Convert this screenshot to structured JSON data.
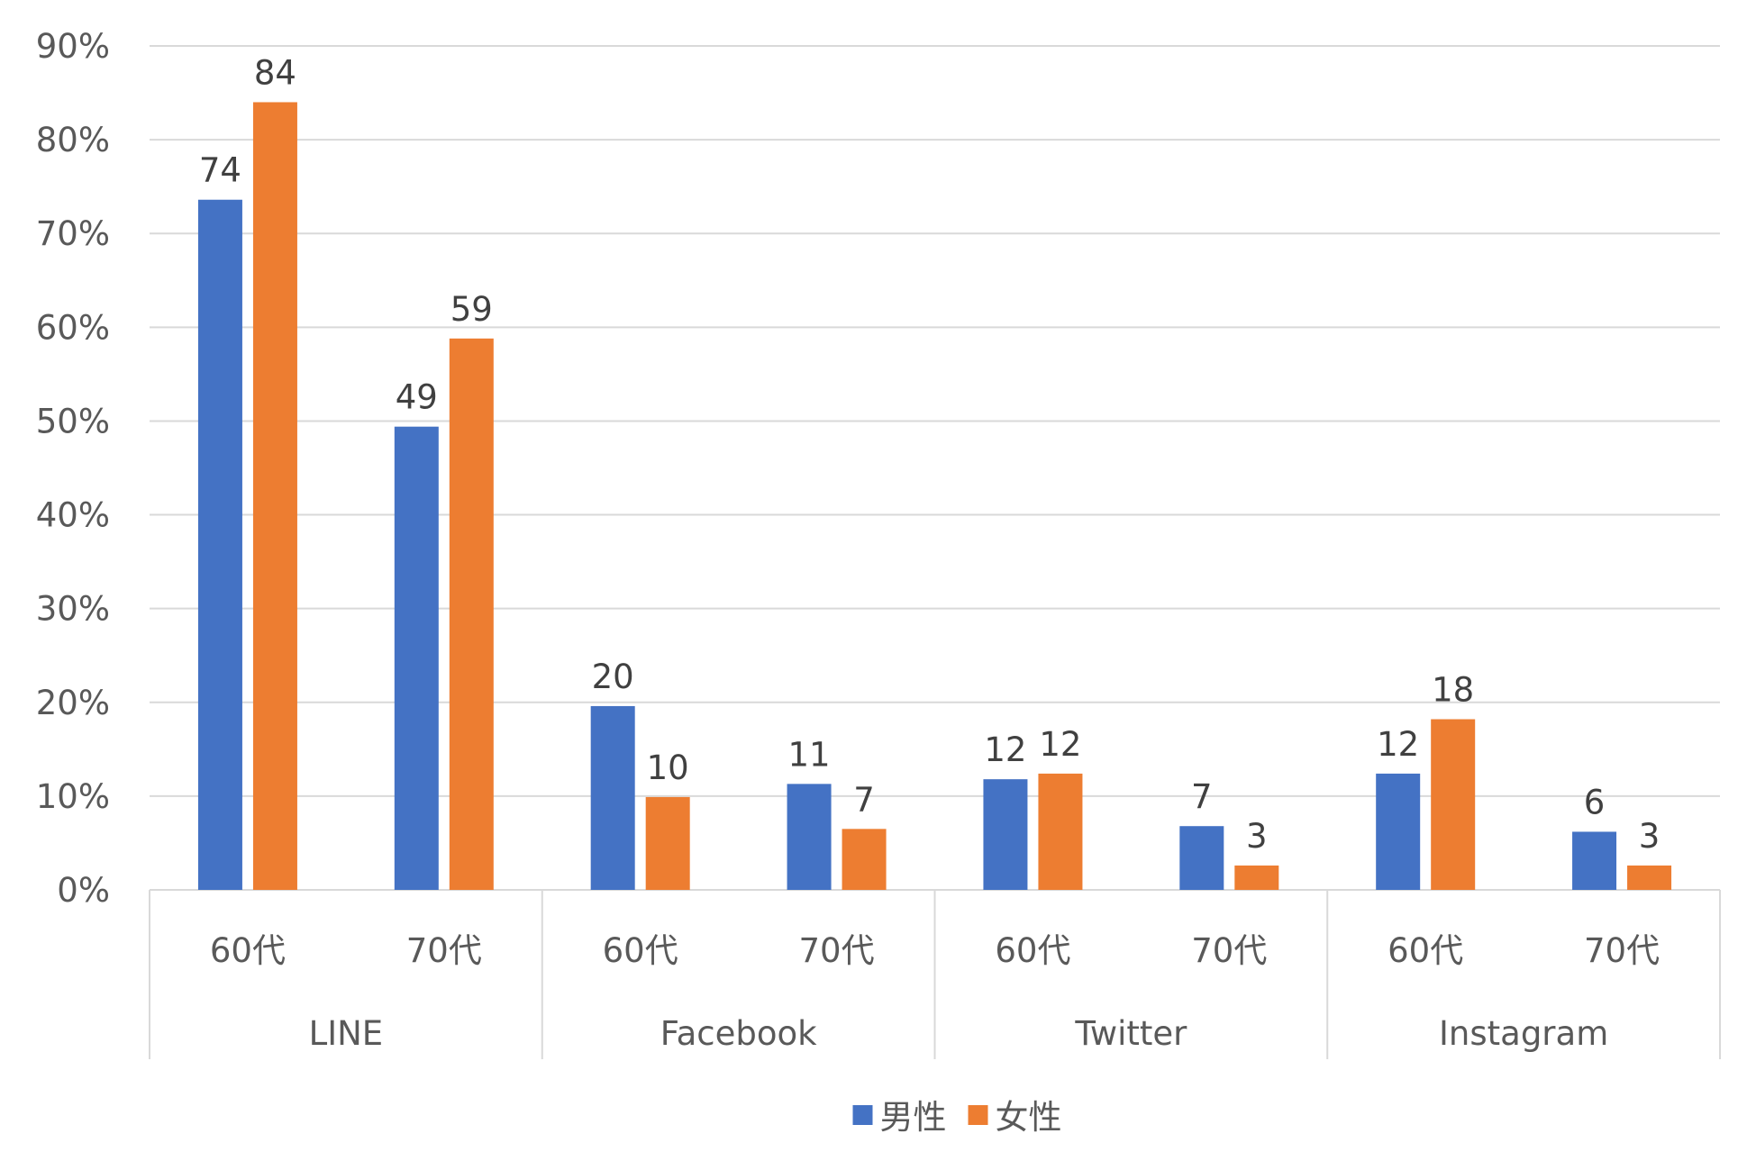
{
  "chart_data": {
    "type": "bar",
    "title": "",
    "xlabel": "",
    "ylabel": "",
    "ylim": [
      0,
      90
    ],
    "yticks": [
      "0%",
      "10%",
      "20%",
      "30%",
      "40%",
      "50%",
      "60%",
      "70%",
      "80%",
      "90%"
    ],
    "grid": true,
    "legend_position": "bottom",
    "groups": [
      {
        "label": "LINE",
        "categories": [
          "60代",
          "70代"
        ]
      },
      {
        "label": "Facebook",
        "categories": [
          "60代",
          "70代"
        ]
      },
      {
        "label": "Twitter",
        "categories": [
          "60代",
          "70代"
        ]
      },
      {
        "label": "Instagram",
        "categories": [
          "60代",
          "70代"
        ]
      }
    ],
    "series": [
      {
        "name": "男性",
        "color": "#4472C4",
        "values": [
          73.6,
          49.4,
          19.6,
          11.3,
          11.8,
          6.8,
          12.4,
          6.2
        ],
        "labels": [
          "74",
          "49",
          "20",
          "11",
          "12",
          "7",
          "12",
          "6"
        ]
      },
      {
        "name": "女性",
        "color": "#ED7D31",
        "values": [
          84.0,
          58.8,
          9.9,
          6.5,
          12.4,
          2.6,
          18.2,
          2.6
        ],
        "labels": [
          "84",
          "59",
          "10",
          "7",
          "12",
          "3",
          "18",
          "3"
        ]
      }
    ]
  }
}
